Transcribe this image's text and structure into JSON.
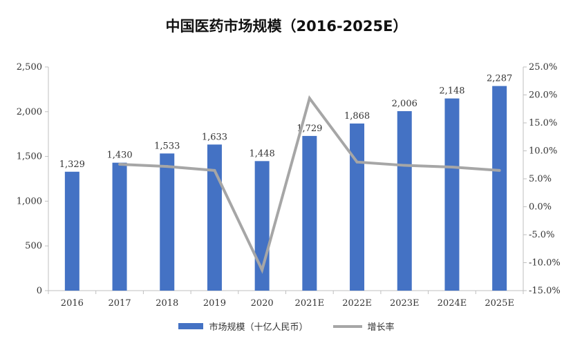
{
  "chart_data": {
    "type": "bar",
    "title": "中国医药市场规模（2016-2025E）",
    "categories": [
      "2016",
      "2017",
      "2018",
      "2019",
      "2020",
      "2021E",
      "2022E",
      "2023E",
      "2024E",
      "2025E"
    ],
    "series": [
      {
        "name": "市场规模（十亿人民币）",
        "type": "bar",
        "axis": "left",
        "values": [
          1329,
          1430,
          1533,
          1633,
          1448,
          1729,
          1868,
          2006,
          2148,
          2287
        ],
        "labels": [
          "1,329",
          "1,430",
          "1,533",
          "1,633",
          "1,448",
          "1,729",
          "1,868",
          "2,006",
          "2,148",
          "2,287"
        ]
      },
      {
        "name": "增长率",
        "type": "line",
        "axis": "right",
        "values": [
          null,
          7.6,
          7.2,
          6.5,
          -11.3,
          19.4,
          8.0,
          7.4,
          7.1,
          6.5
        ]
      }
    ],
    "y_left": {
      "ylim": [
        0,
        2500
      ],
      "ticks": [
        0,
        500,
        1000,
        1500,
        2000,
        2500
      ],
      "tick_labels": [
        "0",
        "500",
        "1,000",
        "1,500",
        "2,000",
        "2,500"
      ]
    },
    "y_right": {
      "ylim": [
        -15,
        25
      ],
      "ticks": [
        -15,
        -10,
        -5,
        0,
        5,
        10,
        15,
        20,
        25
      ],
      "tick_labels": [
        "-15.0%",
        "-10.0%",
        "-5.0%",
        "0.0%",
        "5.0%",
        "10.0%",
        "15.0%",
        "20.0%",
        "25.0%"
      ]
    },
    "legend_position": "bottom",
    "colors": {
      "bar": "#4472c4",
      "line": "#a6a6a6",
      "axis": "#bfbfbf"
    }
  }
}
